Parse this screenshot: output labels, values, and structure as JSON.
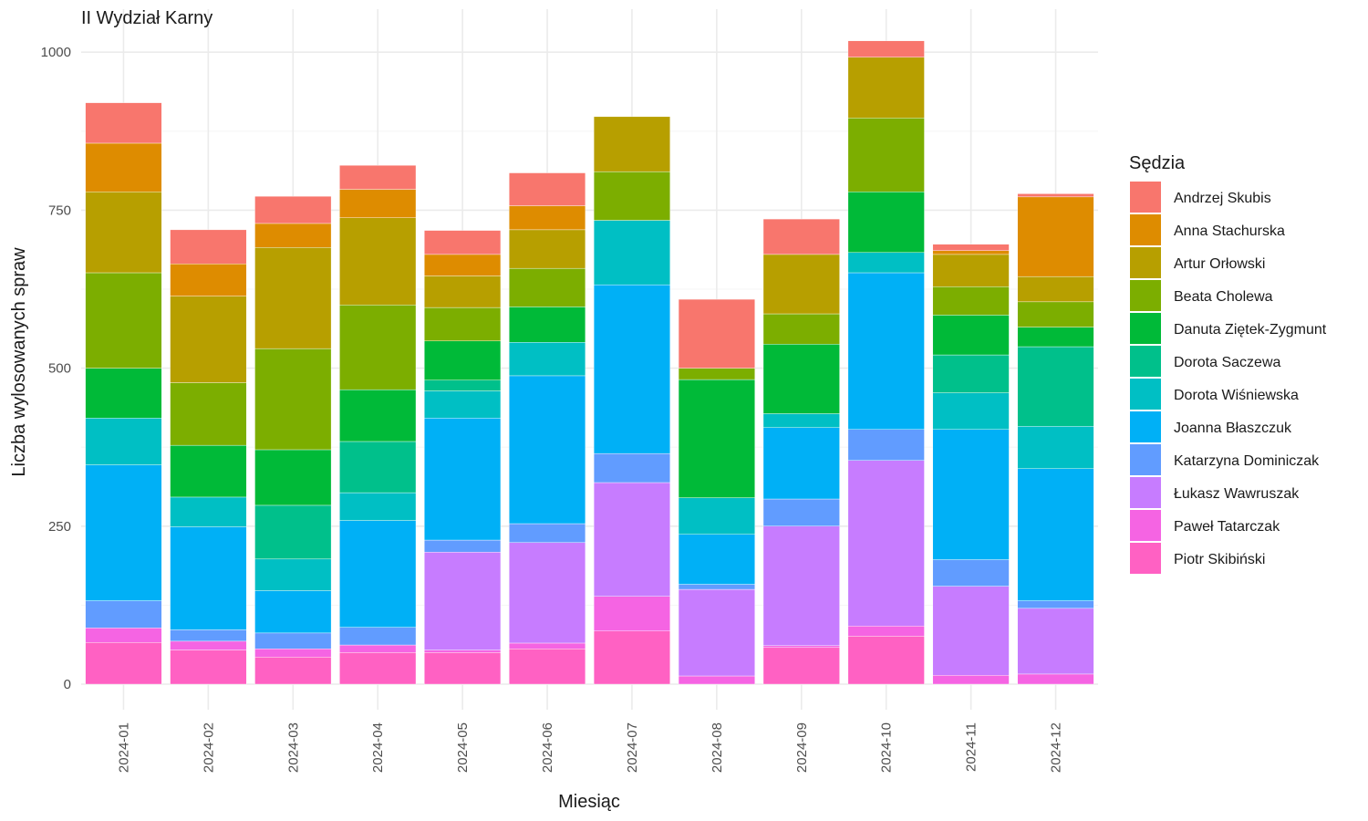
{
  "chart_data": {
    "type": "bar",
    "stacked": true,
    "title": "II Wydział Karny",
    "xlabel": "Miesiąc",
    "ylabel": "Liczba wylosowanych spraw",
    "ylim": [
      0,
      1020
    ],
    "yticks": [
      0,
      250,
      500,
      750,
      1000
    ],
    "grid": true,
    "legend_title": "Sędzia",
    "legend_position": "right",
    "categories": [
      "2024-01",
      "2024-02",
      "2024-03",
      "2024-04",
      "2024-05",
      "2024-06",
      "2024-07",
      "2024-08",
      "2024-09",
      "2024-10",
      "2024-11",
      "2024-12"
    ],
    "series": [
      {
        "name": "Piotr Skibiński",
        "color": "#FF61C3",
        "values": [
          66,
          54,
          43,
          50,
          50,
          56,
          84,
          0,
          58,
          76,
          0,
          0
        ]
      },
      {
        "name": "Paweł Tatarczak",
        "color": "#F564E3",
        "values": [
          23,
          14,
          13,
          12,
          4,
          9,
          55,
          13,
          3,
          16,
          14,
          16
        ]
      },
      {
        "name": "Łukasz Wawruszak",
        "color": "#C77CFF",
        "values": [
          0,
          0,
          0,
          0,
          155,
          159,
          180,
          137,
          189,
          262,
          141,
          104
        ]
      },
      {
        "name": "Katarzyna Dominiczak",
        "color": "#619CFF",
        "values": [
          43,
          18,
          25,
          28,
          19,
          30,
          46,
          8,
          43,
          49,
          42,
          12
        ]
      },
      {
        "name": "Joanna Błaszczuk",
        "color": "#00B0F6",
        "values": [
          215,
          163,
          67,
          169,
          193,
          234,
          267,
          79,
          113,
          248,
          206,
          209
        ]
      },
      {
        "name": "Dorota Wiśniewska",
        "color": "#00BFC4",
        "values": [
          74,
          47,
          50,
          44,
          43,
          53,
          102,
          58,
          22,
          32,
          58,
          67
        ]
      },
      {
        "name": "Dorota Saczewa",
        "color": "#00C08B",
        "values": [
          0,
          0,
          85,
          81,
          17,
          0,
          0,
          0,
          0,
          0,
          60,
          126
        ]
      },
      {
        "name": "Danuta Ziętek-Zygmunt",
        "color": "#00BA38",
        "values": [
          79,
          82,
          88,
          82,
          62,
          56,
          0,
          187,
          110,
          96,
          63,
          31
        ]
      },
      {
        "name": "Beata Cholewa",
        "color": "#7CAE00",
        "values": [
          151,
          99,
          160,
          134,
          53,
          61,
          77,
          18,
          48,
          117,
          45,
          40
        ]
      },
      {
        "name": "Artur Orłowski",
        "color": "#B79F00",
        "values": [
          128,
          137,
          160,
          138,
          50,
          61,
          87,
          0,
          94,
          96,
          51,
          40
        ]
      },
      {
        "name": "Anna Stachurska",
        "color": "#DE8C00",
        "values": [
          77,
          51,
          38,
          45,
          34,
          38,
          0,
          0,
          0,
          0,
          6,
          126
        ]
      },
      {
        "name": "Andrzej Skubis",
        "color": "#F8766D",
        "values": [
          64,
          54,
          43,
          38,
          38,
          52,
          0,
          109,
          56,
          26,
          10,
          5
        ]
      }
    ]
  }
}
